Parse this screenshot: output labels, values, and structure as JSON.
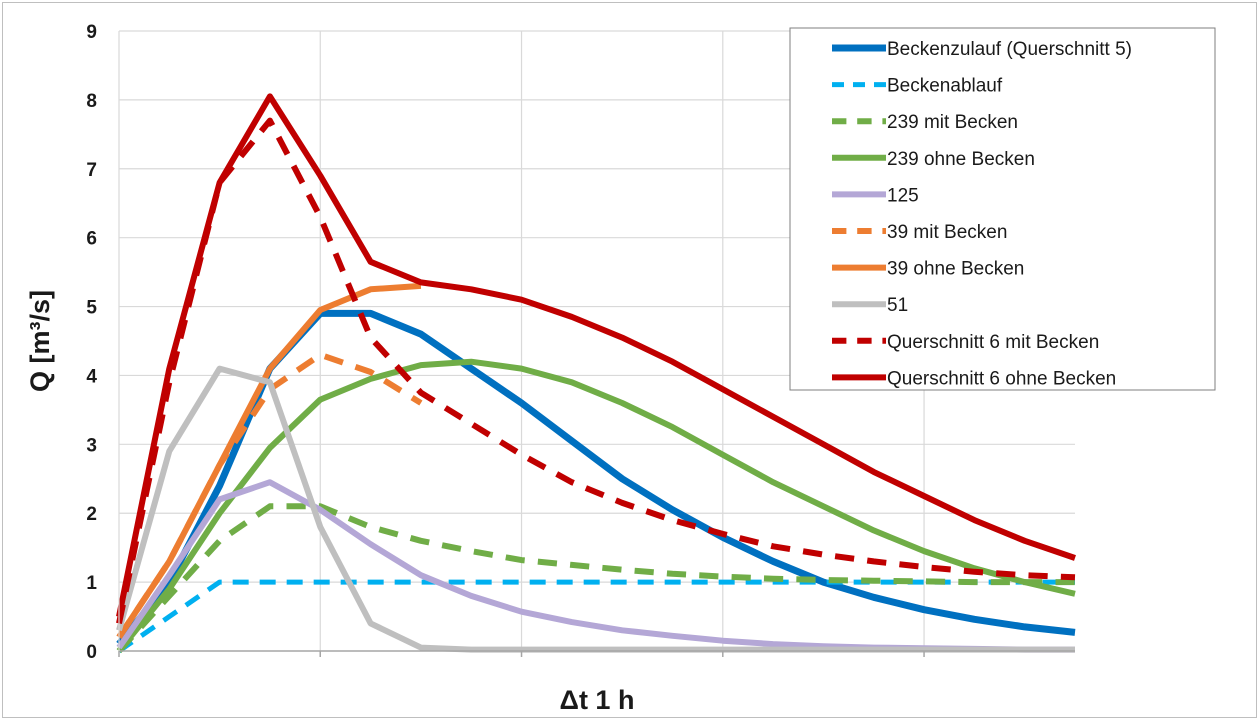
{
  "chart_data": {
    "type": "line",
    "title": "",
    "xlabel": "Δt 1 h",
    "ylabel": "Q [m³/s]",
    "ylim": [
      0,
      9
    ],
    "yticks": [
      0,
      1,
      2,
      3,
      4,
      5,
      6,
      7,
      8,
      9
    ],
    "x": [
      0,
      1,
      2,
      3,
      4,
      5,
      6,
      7,
      8,
      9,
      10,
      11,
      12,
      13,
      14,
      15,
      16,
      17,
      18,
      19
    ],
    "xlim": [
      0,
      19
    ],
    "x_gridlines": [
      0,
      4,
      8,
      12,
      16
    ],
    "grid": "horizontal",
    "legend_position": "top-right",
    "series": [
      {
        "name": "Beckenzulauf (Querschnitt 5)",
        "color": "#0070c0",
        "dash": "solid",
        "width": 7,
        "values": [
          0.1,
          1.0,
          2.4,
          4.1,
          4.9,
          4.9,
          4.6,
          4.1,
          3.6,
          3.05,
          2.5,
          2.05,
          1.65,
          1.3,
          1.0,
          0.78,
          0.6,
          0.46,
          0.35,
          0.27
        ]
      },
      {
        "name": "Beckenablauf",
        "color": "#00b0f0",
        "dash": "dashed",
        "width": 5,
        "values": [
          0.0,
          0.5,
          1.0,
          1.0,
          1.0,
          1.0,
          1.0,
          1.0,
          1.0,
          1.0,
          1.0,
          1.0,
          1.0,
          1.0,
          1.0,
          1.0,
          1.0,
          1.0,
          1.0,
          1.0
        ]
      },
      {
        "name": "239 mit Becken",
        "color": "#70ad47",
        "dash": "dashed",
        "width": 6,
        "values": [
          0.0,
          0.8,
          1.6,
          2.1,
          2.1,
          1.8,
          1.6,
          1.45,
          1.32,
          1.25,
          1.18,
          1.12,
          1.08,
          1.05,
          1.03,
          1.02,
          1.01,
          1.0,
          1.0,
          1.0
        ]
      },
      {
        "name": "239 ohne Becken",
        "color": "#70ad47",
        "dash": "solid",
        "width": 6,
        "values": [
          0.0,
          0.9,
          2.0,
          2.95,
          3.65,
          3.95,
          4.15,
          4.2,
          4.1,
          3.9,
          3.6,
          3.25,
          2.85,
          2.45,
          2.1,
          1.75,
          1.45,
          1.2,
          1.0,
          0.83
        ]
      },
      {
        "name": "125",
        "color": "#b4a7d6",
        "dash": "solid",
        "width": 6,
        "values": [
          0.05,
          1.1,
          2.2,
          2.45,
          2.05,
          1.55,
          1.1,
          0.8,
          0.57,
          0.42,
          0.3,
          0.22,
          0.15,
          0.1,
          0.07,
          0.05,
          0.04,
          0.03,
          0.02,
          0.02
        ]
      },
      {
        "name": "39 mit Becken",
        "color": "#ed7d31",
        "dash": "dashed",
        "width": 6,
        "values": [
          0.2,
          1.3,
          2.7,
          3.8,
          4.3,
          4.05,
          3.6,
          null,
          null,
          null,
          null,
          null,
          null,
          null,
          null,
          null,
          null,
          null,
          null,
          null
        ]
      },
      {
        "name": "39 ohne Becken",
        "color": "#ed7d31",
        "dash": "solid",
        "width": 6,
        "values": [
          0.2,
          1.3,
          2.7,
          4.1,
          4.95,
          5.25,
          5.3,
          null,
          null,
          null,
          null,
          null,
          null,
          null,
          null,
          null,
          null,
          null,
          null,
          null
        ]
      },
      {
        "name": "51",
        "color": "#bfbfbf",
        "dash": "solid",
        "width": 6,
        "values": [
          0.3,
          2.9,
          4.1,
          3.9,
          1.8,
          0.4,
          0.05,
          0.02,
          0.02,
          0.02,
          0.02,
          0.02,
          0.02,
          0.02,
          0.02,
          0.02,
          0.02,
          0.02,
          0.02,
          0.02
        ]
      },
      {
        "name": "Querschnitt 6 mit Becken",
        "color": "#c00000",
        "dash": "dashed",
        "width": 6,
        "values": [
          0.4,
          3.9,
          6.8,
          7.7,
          6.3,
          4.55,
          3.75,
          3.3,
          2.85,
          2.45,
          2.15,
          1.9,
          1.7,
          1.52,
          1.4,
          1.3,
          1.22,
          1.15,
          1.1,
          1.07
        ]
      },
      {
        "name": "Querschnitt 6 ohne Becken",
        "color": "#c00000",
        "dash": "solid",
        "width": 6,
        "values": [
          0.5,
          4.1,
          6.8,
          8.05,
          6.9,
          5.65,
          5.35,
          5.25,
          5.1,
          4.85,
          4.55,
          4.2,
          3.8,
          3.4,
          3.0,
          2.6,
          2.25,
          1.9,
          1.6,
          1.35
        ]
      }
    ]
  }
}
